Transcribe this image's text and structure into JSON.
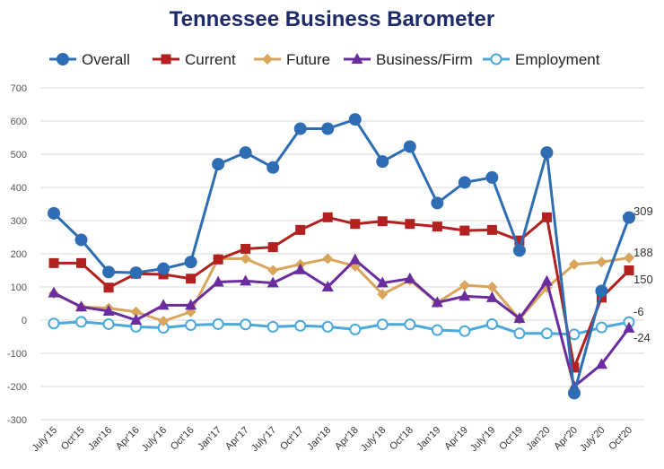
{
  "chart_data": {
    "type": "line",
    "title": "Tennessee Business Barometer",
    "xlabel": "",
    "ylabel": "",
    "ylim": [
      -300,
      700
    ],
    "yticks": [
      -300,
      -200,
      -100,
      0,
      100,
      200,
      300,
      400,
      500,
      600,
      700
    ],
    "grid": true,
    "legend_position": "top",
    "categories": [
      "July'15",
      "Oct'15",
      "Jan'16",
      "Apr'16",
      "July'16",
      "Oct'16",
      "Jan'17",
      "Apr'17",
      "July'17",
      "Oct'17",
      "Jan'18",
      "Apr'18",
      "July'18",
      "Oct'18",
      "Jan'19",
      "Apr'19",
      "July'19",
      "Oct'19",
      "Jan'20",
      "Apr'20",
      "July'20",
      "Oct'20"
    ],
    "series": [
      {
        "name": "Overall",
        "color": "#2e6db4",
        "marker": "circle",
        "values": [
          322,
          242,
          145,
          143,
          155,
          175,
          470,
          505,
          460,
          577,
          577,
          605,
          478,
          523,
          353,
          415,
          430,
          210,
          505,
          -220,
          88,
          309
        ]
      },
      {
        "name": "Current",
        "color": "#b32020",
        "marker": "square",
        "values": [
          172,
          172,
          98,
          140,
          138,
          125,
          183,
          215,
          220,
          272,
          310,
          290,
          298,
          290,
          282,
          270,
          272,
          240,
          310,
          -143,
          68,
          150
        ]
      },
      {
        "name": "Future",
        "color": "#d9a55a",
        "marker": "diamond",
        "values": [
          80,
          40,
          36,
          25,
          -3,
          25,
          185,
          185,
          150,
          168,
          185,
          163,
          78,
          120,
          53,
          105,
          100,
          3,
          98,
          168,
          175,
          188
        ]
      },
      {
        "name": "Business/Firm",
        "color": "#6a2c9e",
        "marker": "triangle",
        "values": [
          82,
          40,
          27,
          0,
          45,
          45,
          115,
          118,
          112,
          152,
          100,
          182,
          112,
          125,
          53,
          72,
          68,
          5,
          117,
          -200,
          -133,
          -24
        ]
      },
      {
        "name": "Employment",
        "color": "#4aa8dc",
        "marker": "open-circle",
        "values": [
          -10,
          -5,
          -12,
          -20,
          -23,
          -15,
          -12,
          -13,
          -20,
          -17,
          -20,
          -28,
          -13,
          -13,
          -30,
          -33,
          -12,
          -40,
          -40,
          -43,
          -22,
          -6
        ]
      }
    ],
    "end_labels": [
      "309",
      "188",
      "150",
      "-6",
      "-24"
    ]
  }
}
